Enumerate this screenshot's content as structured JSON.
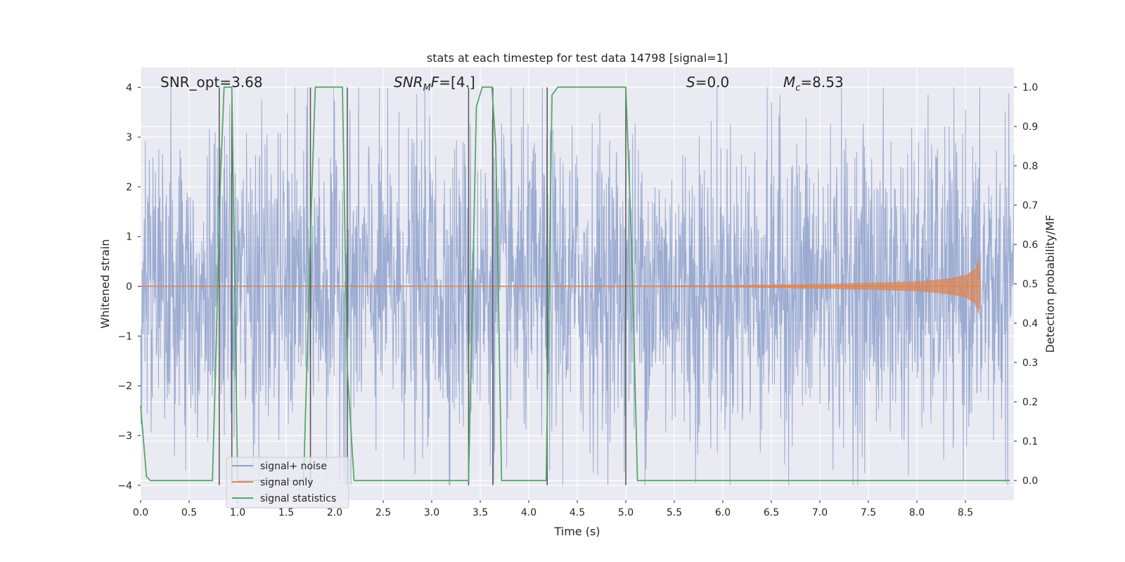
{
  "chart_data": {
    "type": "line",
    "title": "stats at each timestep for test data 14798 [signal=1]",
    "xlabel": "Time (s)",
    "ylabel": "Whitened strain",
    "y2label": "Detection probability/MF",
    "xlim": [
      0.0,
      9.0
    ],
    "ylim": [
      -4.3,
      4.4
    ],
    "y2lim": [
      -0.05,
      1.05
    ],
    "x_ticks": [
      "0.0",
      "0.5",
      "1.0",
      "1.5",
      "2.0",
      "2.5",
      "3.0",
      "3.5",
      "4.0",
      "4.5",
      "5.0",
      "5.5",
      "6.0",
      "6.5",
      "7.0",
      "7.5",
      "8.0",
      "8.5"
    ],
    "y_ticks": [
      "4",
      "3",
      "2",
      "1",
      "0",
      "−1",
      "−2",
      "−3",
      "−4"
    ],
    "y2_ticks": [
      "1.0",
      "0.9",
      "0.8",
      "0.7",
      "0.6",
      "0.5",
      "0.4",
      "0.3",
      "0.2",
      "0.1",
      "0.0"
    ],
    "grid": true,
    "legend_position": "lower-left",
    "annotations": [
      {
        "id": "snr-opt",
        "text": "SNR_opt=3.68",
        "x": 0.2
      },
      {
        "id": "snr-mf",
        "text": "SNR_MF=[4.]",
        "x": 2.6
      },
      {
        "id": "s-value",
        "text": "S=0.0",
        "x": 5.6
      },
      {
        "id": "mc-value",
        "text": "M_c=8.53",
        "x": 6.6
      }
    ],
    "series": [
      {
        "name": "signal+ noise",
        "color": "#8da0cb",
        "noise_amplitude_std": 1.0,
        "t_range": [
          0.0,
          9.0
        ]
      },
      {
        "name": "signal only",
        "color": "#dd8452",
        "envelope": {
          "x": [
            0.0,
            5.0,
            6.0,
            7.0,
            7.5,
            8.0,
            8.3,
            8.5,
            8.6,
            8.65,
            8.66
          ],
          "amp": [
            0.005,
            0.01,
            0.02,
            0.05,
            0.07,
            0.1,
            0.15,
            0.22,
            0.35,
            0.65,
            0.0
          ]
        }
      },
      {
        "name": "signal statistics",
        "color": "#55a868",
        "x": [
          0.0,
          0.06,
          0.1,
          0.74,
          0.78,
          0.82,
          0.86,
          0.94,
          1.0,
          1.68,
          1.76,
          1.8,
          2.08,
          2.13,
          2.2,
          2.3,
          3.38,
          3.46,
          3.52,
          3.62,
          3.66,
          3.72,
          4.18,
          4.24,
          4.3,
          5.0,
          5.06,
          5.12,
          8.96
        ],
        "y": [
          0.19,
          0.01,
          0.0,
          0.0,
          0.35,
          0.75,
          1.0,
          1.0,
          0.0,
          0.0,
          0.7,
          1.0,
          1.0,
          0.28,
          0.0,
          0.0,
          0.0,
          0.95,
          1.0,
          1.0,
          0.85,
          0.0,
          0.0,
          0.98,
          1.0,
          1.0,
          0.6,
          0.0,
          0.0
        ]
      }
    ],
    "vertical_markers": [
      0.81,
      0.94,
      1.75,
      2.13,
      3.38,
      3.63,
      4.19,
      5.0
    ]
  }
}
